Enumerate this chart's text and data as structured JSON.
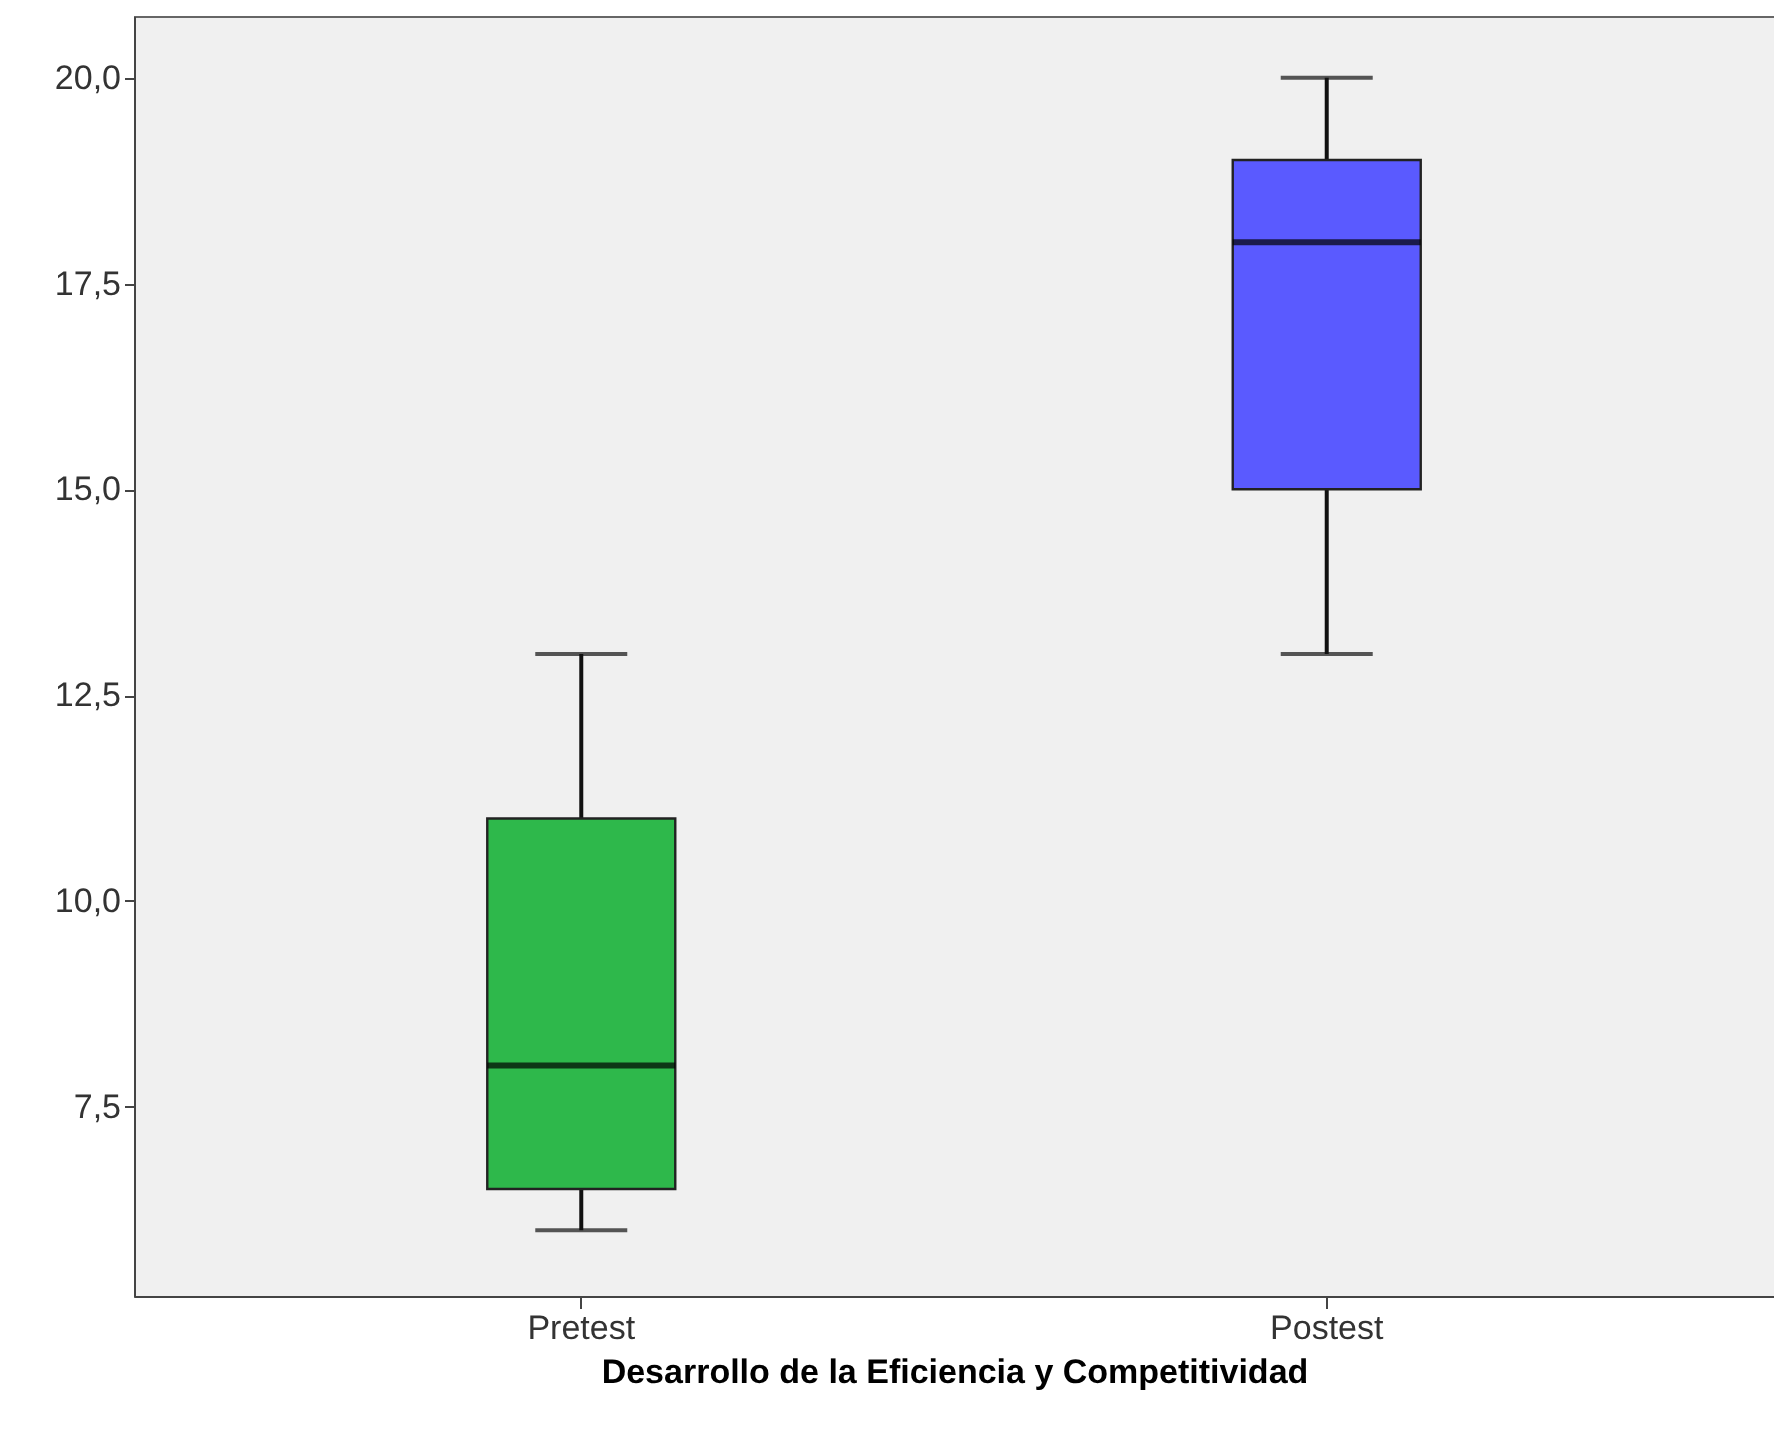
{
  "chart_data": {
    "type": "box",
    "xlabel": "Desarrollo de la Eficiencia y Competitividad",
    "categories": [
      "Pretest",
      "Postest"
    ],
    "boxes": [
      {
        "low": 6,
        "q1": 6.5,
        "median": 8,
        "q3": 11,
        "high": 13
      },
      {
        "low": 13,
        "q1": 15,
        "median": 18,
        "q3": 19,
        "high": 20
      }
    ],
    "colors": [
      "#2eb84b",
      "#5a5aff"
    ],
    "ylim": [
      5.2,
      20.75
    ],
    "yticks": [
      {
        "value": 7.5,
        "label": "7,5"
      },
      {
        "value": 10,
        "label": "10,0"
      },
      {
        "value": 12.5,
        "label": "12,5"
      },
      {
        "value": 15,
        "label": "15,0"
      },
      {
        "value": 17.5,
        "label": "17,5"
      },
      {
        "value": 20,
        "label": "20,0"
      }
    ],
    "grid": false
  }
}
